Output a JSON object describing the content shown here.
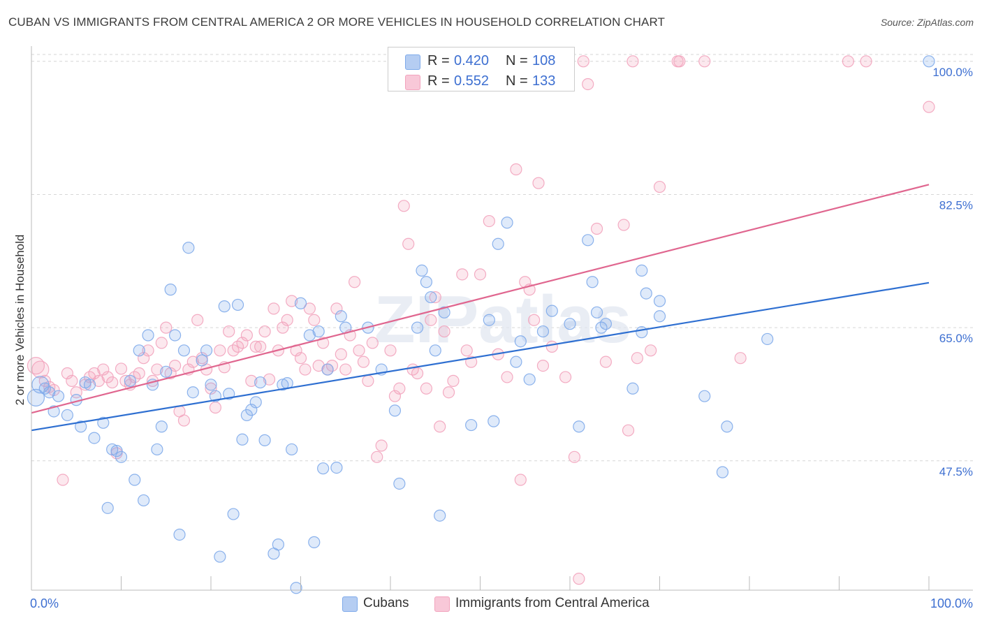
{
  "header": {
    "title": "CUBAN VS IMMIGRANTS FROM CENTRAL AMERICA 2 OR MORE VEHICLES IN HOUSEHOLD CORRELATION CHART",
    "source": "Source: ZipAtlas.com"
  },
  "legend": {
    "r_label": "R =",
    "n_label": "N =",
    "series1": {
      "r": "0.420",
      "n": "108"
    },
    "series2": {
      "r": "0.552",
      "n": "133"
    }
  },
  "watermark": "ZIPatlas",
  "chart_data": {
    "type": "scatter",
    "title": "CUBAN VS IMMIGRANTS FROM CENTRAL AMERICA 2 OR MORE VEHICLES IN HOUSEHOLD CORRELATION CHART",
    "xlabel": "",
    "ylabel": "2 or more Vehicles in Household",
    "xlim": [
      0,
      100
    ],
    "ylim": [
      30.5,
      102
    ],
    "x_tick_labels": [
      "0.0%",
      "100.0%"
    ],
    "y_ticks": [
      47.5,
      65.0,
      82.5,
      100.0
    ],
    "y_tick_labels": [
      "47.5%",
      "65.0%",
      "82.5%",
      "100.0%"
    ],
    "grid": true,
    "colors": {
      "cubans": "#7eaaea",
      "cubans_line": "#2e6fd1",
      "central_america": "#f2a3bd",
      "central_america_line": "#e0668f",
      "axis_text": "#3d6fd1"
    },
    "series": [
      {
        "name": "Cubans",
        "r": 0.42,
        "n": 108,
        "trend": [
          [
            0,
            51.5
          ],
          [
            100,
            70.9
          ]
        ],
        "points": [
          [
            0.5,
            55.8
          ],
          [
            1,
            57.5
          ],
          [
            1.5,
            57
          ],
          [
            2,
            56.5
          ],
          [
            2.5,
            54
          ],
          [
            3,
            56
          ],
          [
            4,
            53.5
          ],
          [
            5,
            55.5
          ],
          [
            5.5,
            52
          ],
          [
            6,
            57.8
          ],
          [
            6.5,
            57.5
          ],
          [
            7,
            50.5
          ],
          [
            8,
            52.5
          ],
          [
            8.5,
            41.3
          ],
          [
            9,
            49
          ],
          [
            9.5,
            48.8
          ],
          [
            10,
            48
          ],
          [
            11,
            58
          ],
          [
            11.5,
            45
          ],
          [
            12,
            62
          ],
          [
            12.5,
            42.3
          ],
          [
            13,
            64
          ],
          [
            13.5,
            57.5
          ],
          [
            14,
            49
          ],
          [
            14.5,
            52
          ],
          [
            15,
            59.2
          ],
          [
            15.5,
            70
          ],
          [
            16,
            64
          ],
          [
            16.5,
            37.8
          ],
          [
            17,
            62
          ],
          [
            17.5,
            75.5
          ],
          [
            18,
            56.5
          ],
          [
            19,
            60.7
          ],
          [
            19.5,
            62
          ],
          [
            20,
            57.5
          ],
          [
            20.5,
            56
          ],
          [
            21,
            34.9
          ],
          [
            21.5,
            67.8
          ],
          [
            22,
            56.3
          ],
          [
            22.5,
            40.5
          ],
          [
            23,
            68
          ],
          [
            23.5,
            50.3
          ],
          [
            24,
            53.5
          ],
          [
            24.5,
            54.2
          ],
          [
            25,
            55.2
          ],
          [
            25.5,
            57.8
          ],
          [
            26,
            50.2
          ],
          [
            27,
            35.3
          ],
          [
            27.5,
            36.5
          ],
          [
            28,
            57.5
          ],
          [
            28.5,
            57.7
          ],
          [
            29,
            49
          ],
          [
            29.5,
            30.8
          ],
          [
            30,
            68.2
          ],
          [
            31,
            64
          ],
          [
            31.5,
            36.8
          ],
          [
            32,
            64.5
          ],
          [
            32.5,
            46.5
          ],
          [
            33,
            59.5
          ],
          [
            34,
            46.6
          ],
          [
            34.5,
            66.5
          ],
          [
            35,
            65
          ],
          [
            37.5,
            65
          ],
          [
            39,
            59.5
          ],
          [
            40.5,
            54.1
          ],
          [
            41,
            44.5
          ],
          [
            43,
            65
          ],
          [
            43.5,
            72.5
          ],
          [
            44,
            71
          ],
          [
            44.5,
            69
          ],
          [
            45,
            62
          ],
          [
            45.5,
            40.3
          ],
          [
            46,
            67
          ],
          [
            49,
            52.2
          ],
          [
            51,
            66
          ],
          [
            51.5,
            52.7
          ],
          [
            52,
            76
          ],
          [
            53,
            78.8
          ],
          [
            54,
            60.5
          ],
          [
            54.5,
            63.2
          ],
          [
            55.5,
            58.2
          ],
          [
            57,
            64.5
          ],
          [
            58,
            67.2
          ],
          [
            60,
            65.5
          ],
          [
            61,
            52
          ],
          [
            62,
            76.5
          ],
          [
            62.5,
            71
          ],
          [
            63,
            67
          ],
          [
            63.5,
            65
          ],
          [
            64,
            65.5
          ],
          [
            67,
            57
          ],
          [
            68,
            64.4
          ],
          [
            68,
            72.5
          ],
          [
            68.5,
            69.5
          ],
          [
            70,
            66.5
          ],
          [
            70,
            68.5
          ],
          [
            75,
            56
          ],
          [
            77,
            46
          ],
          [
            77.5,
            52
          ],
          [
            82,
            63.5
          ],
          [
            100,
            100
          ]
        ]
      },
      {
        "name": "Immigrants from Central America",
        "r": 0.552,
        "n": 133,
        "trend": [
          [
            0,
            53.8
          ],
          [
            100,
            83.8
          ]
        ],
        "points": [
          [
            0.5,
            60
          ],
          [
            1,
            59.5
          ],
          [
            1.5,
            58
          ],
          [
            2,
            57.2
          ],
          [
            2.5,
            56.8
          ],
          [
            3.5,
            45
          ],
          [
            4,
            59
          ],
          [
            4.5,
            58
          ],
          [
            5,
            56.5
          ],
          [
            6,
            57.5
          ],
          [
            6.5,
            58.5
          ],
          [
            7,
            59
          ],
          [
            7.5,
            58
          ],
          [
            8,
            59.5
          ],
          [
            8.5,
            58.5
          ],
          [
            9,
            57.8
          ],
          [
            9.5,
            48.5
          ],
          [
            10,
            59.6
          ],
          [
            10.5,
            58
          ],
          [
            11,
            57.5
          ],
          [
            11.5,
            58.5
          ],
          [
            12,
            59
          ],
          [
            12.5,
            61
          ],
          [
            13,
            62
          ],
          [
            13.5,
            58
          ],
          [
            14,
            59.5
          ],
          [
            14.5,
            63
          ],
          [
            15,
            65
          ],
          [
            15.5,
            59
          ],
          [
            16,
            60
          ],
          [
            16.5,
            54
          ],
          [
            17,
            52.8
          ],
          [
            17.5,
            59.5
          ],
          [
            18,
            60.5
          ],
          [
            18.5,
            66
          ],
          [
            19,
            61
          ],
          [
            19.5,
            59.5
          ],
          [
            20,
            57
          ],
          [
            20.5,
            54.5
          ],
          [
            21,
            62
          ],
          [
            21.5,
            59.8
          ],
          [
            22,
            64.5
          ],
          [
            22.5,
            62
          ],
          [
            23,
            62.5
          ],
          [
            23.5,
            63
          ],
          [
            24,
            64
          ],
          [
            24.5,
            58
          ],
          [
            25,
            62.5
          ],
          [
            25.5,
            62.5
          ],
          [
            26,
            64.5
          ],
          [
            26.5,
            58.2
          ],
          [
            27,
            67.5
          ],
          [
            27.5,
            62
          ],
          [
            28,
            65
          ],
          [
            28.5,
            66
          ],
          [
            29,
            68.5
          ],
          [
            29.5,
            62
          ],
          [
            30,
            61
          ],
          [
            30.5,
            59.5
          ],
          [
            31,
            67.5
          ],
          [
            31.5,
            66
          ],
          [
            32,
            60
          ],
          [
            32.5,
            63
          ],
          [
            33,
            59.5
          ],
          [
            33.5,
            60
          ],
          [
            34,
            67.5
          ],
          [
            34.5,
            61.5
          ],
          [
            35,
            59.5
          ],
          [
            35.5,
            64
          ],
          [
            36,
            71
          ],
          [
            36.5,
            62
          ],
          [
            37,
            60.5
          ],
          [
            37.5,
            58
          ],
          [
            38,
            63
          ],
          [
            38.5,
            48
          ],
          [
            39,
            49.5
          ],
          [
            40,
            62
          ],
          [
            40.5,
            56
          ],
          [
            41,
            57
          ],
          [
            41.5,
            81
          ],
          [
            42,
            76
          ],
          [
            42.5,
            59.5
          ],
          [
            43,
            59
          ],
          [
            44,
            57
          ],
          [
            44.5,
            66
          ],
          [
            45,
            69
          ],
          [
            45.5,
            52
          ],
          [
            46,
            64.5
          ],
          [
            46.5,
            56.5
          ],
          [
            47,
            58
          ],
          [
            48,
            72
          ],
          [
            48.5,
            62
          ],
          [
            49,
            60.5
          ],
          [
            50,
            72
          ],
          [
            51,
            79
          ],
          [
            52,
            61.5
          ],
          [
            53,
            58.5
          ],
          [
            54,
            85.8
          ],
          [
            54.5,
            45
          ],
          [
            55,
            71
          ],
          [
            55.5,
            70
          ],
          [
            56,
            66
          ],
          [
            56.5,
            84
          ],
          [
            57,
            60
          ],
          [
            58,
            62.5
          ],
          [
            59.5,
            58.5
          ],
          [
            60.5,
            48
          ],
          [
            61,
            32
          ],
          [
            61.5,
            100
          ],
          [
            62,
            97
          ],
          [
            63,
            78
          ],
          [
            64,
            60.5
          ],
          [
            66,
            78.5
          ],
          [
            66.5,
            51.5
          ],
          [
            67,
            100
          ],
          [
            67.5,
            61
          ],
          [
            69,
            62
          ],
          [
            70,
            83.5
          ],
          [
            72,
            100
          ],
          [
            72.2,
            100
          ],
          [
            75,
            100
          ],
          [
            79,
            61
          ],
          [
            91,
            100
          ],
          [
            93,
            100
          ],
          [
            100,
            94
          ]
        ]
      }
    ]
  },
  "bottom_legend": {
    "series1_label": "Cubans",
    "series2_label": "Immigrants from Central America"
  }
}
